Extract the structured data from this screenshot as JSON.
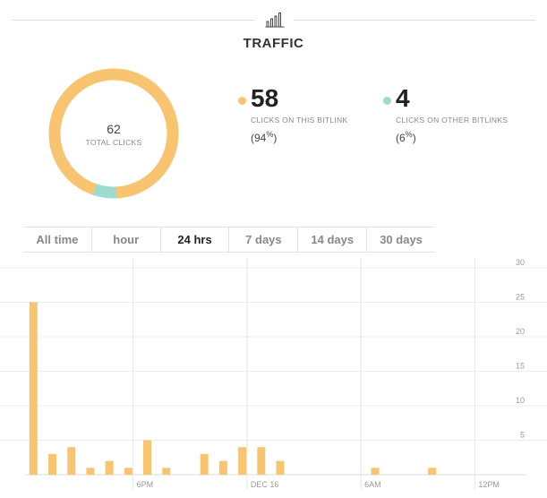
{
  "header": {
    "title": "TRAFFIC",
    "icon": "bar-chart-icon"
  },
  "colors": {
    "accent": "#f9c46f",
    "other": "#9ddbcf",
    "track": "#e9e9e9"
  },
  "summary": {
    "total": {
      "value": "62",
      "label": "TOTAL CLICKS"
    },
    "this_bitlink": {
      "value": "58",
      "label": "CLICKS ON THIS BITLINK",
      "pct_open": "(94",
      "pct_sym": "%",
      "pct_close": ")",
      "share": 0.94
    },
    "other_bitlinks": {
      "value": "4",
      "label": "CLICKS ON OTHER BITLINKS",
      "pct_open": "(6",
      "pct_sym": "%",
      "pct_close": ")",
      "share": 0.06
    }
  },
  "tabs": [
    {
      "label": "All time",
      "active": false
    },
    {
      "label": "hour",
      "active": false
    },
    {
      "label": "24 hrs",
      "active": true
    },
    {
      "label": "7 days",
      "active": false
    },
    {
      "label": "14 days",
      "active": false
    },
    {
      "label": "30 days",
      "active": false
    }
  ],
  "chart_data": {
    "type": "bar",
    "title": "",
    "xlabel": "",
    "ylabel": "",
    "ylim": [
      0,
      30
    ],
    "yticks": [
      5,
      10,
      15,
      20,
      25,
      30
    ],
    "y_axis_position": "right",
    "grid": true,
    "x_tick_labels": [
      "6PM",
      "DEC 16",
      "6AM",
      "12PM"
    ],
    "x_ticks_at_slot": [
      10.5,
      22.5,
      34.5,
      46.5
    ],
    "slots": 48,
    "values": [
      25,
      0,
      3,
      0,
      4,
      0,
      1,
      0,
      2,
      0,
      1,
      0,
      5,
      0,
      1,
      0,
      0,
      0,
      3,
      0,
      2,
      0,
      4,
      0,
      4,
      0,
      2,
      0,
      0,
      0,
      0,
      0,
      0,
      0,
      0,
      0,
      1,
      0,
      0,
      0,
      0,
      0,
      1,
      0,
      0,
      0,
      0,
      0
    ],
    "color": "#f9c46f"
  }
}
